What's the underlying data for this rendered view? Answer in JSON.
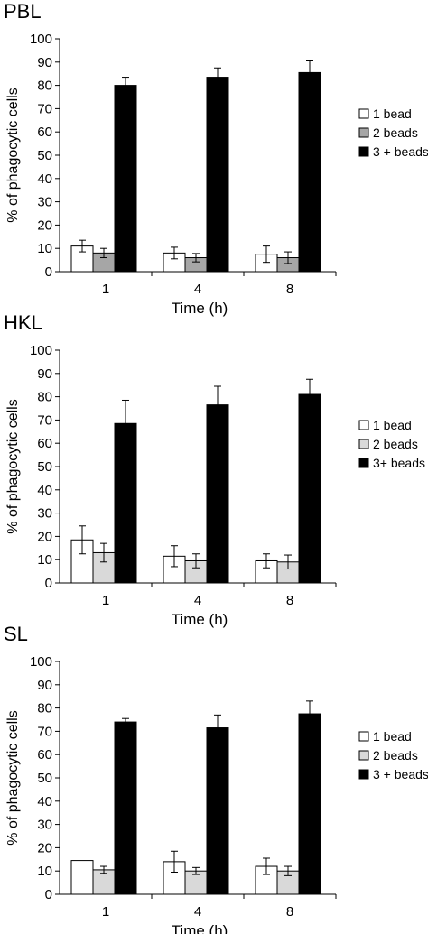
{
  "chart_data": [
    {
      "type": "bar",
      "title": "PBL",
      "xlabel": "Time (h)",
      "ylabel": "% of phagocytic cells",
      "ylim": [
        0,
        100
      ],
      "yticks": [
        0,
        10,
        20,
        30,
        40,
        50,
        60,
        70,
        80,
        90,
        100
      ],
      "categories": [
        "1",
        "4",
        "8"
      ],
      "series": [
        {
          "name": "1 bead",
          "color": "#ffffff",
          "values": [
            11,
            8,
            7.5
          ],
          "errors": [
            2.5,
            2.5,
            3.5
          ]
        },
        {
          "name": "2 beads",
          "color": "#a6a6a6",
          "values": [
            8,
            6,
            6
          ],
          "errors": [
            2,
            1.8,
            2.5
          ]
        },
        {
          "name": "3 + beads",
          "color": "#000000",
          "values": [
            80,
            83.5,
            85.5
          ],
          "errors": [
            3.5,
            4,
            5
          ]
        }
      ]
    },
    {
      "type": "bar",
      "title": "HKL",
      "xlabel": "Time (h)",
      "ylabel": "% of phagocytic cells",
      "ylim": [
        0,
        100
      ],
      "yticks": [
        0,
        10,
        20,
        30,
        40,
        50,
        60,
        70,
        80,
        90,
        100
      ],
      "categories": [
        "1",
        "4",
        "8"
      ],
      "series": [
        {
          "name": "1 bead",
          "color": "#ffffff",
          "values": [
            18.5,
            11.5,
            9.5
          ],
          "errors": [
            6,
            4.5,
            3
          ]
        },
        {
          "name": "2 beads",
          "color": "#d9d9d9",
          "values": [
            13,
            9.5,
            9
          ],
          "errors": [
            4,
            3,
            3
          ]
        },
        {
          "name": "3+ beads",
          "color": "#000000",
          "values": [
            68.5,
            76.5,
            81
          ],
          "errors": [
            10,
            8,
            6.5
          ]
        }
      ]
    },
    {
      "type": "bar",
      "title": "SL",
      "xlabel": "Time (h)",
      "ylabel": "% of phagocytic cells",
      "ylim": [
        0,
        100
      ],
      "yticks": [
        0,
        10,
        20,
        30,
        40,
        50,
        60,
        70,
        80,
        90,
        100
      ],
      "categories": [
        "1",
        "4",
        "8"
      ],
      "series": [
        {
          "name": "1 bead",
          "color": "#ffffff",
          "values": [
            14.5,
            14,
            12
          ],
          "errors": [
            0,
            4.5,
            3.5
          ]
        },
        {
          "name": "2 beads",
          "color": "#d9d9d9",
          "values": [
            10.5,
            10,
            10
          ],
          "errors": [
            1.5,
            1.5,
            2
          ]
        },
        {
          "name": "3 + beads",
          "color": "#000000",
          "values": [
            74,
            71.5,
            77.5
          ],
          "errors": [
            1.5,
            5.5,
            5.5
          ]
        }
      ]
    }
  ]
}
